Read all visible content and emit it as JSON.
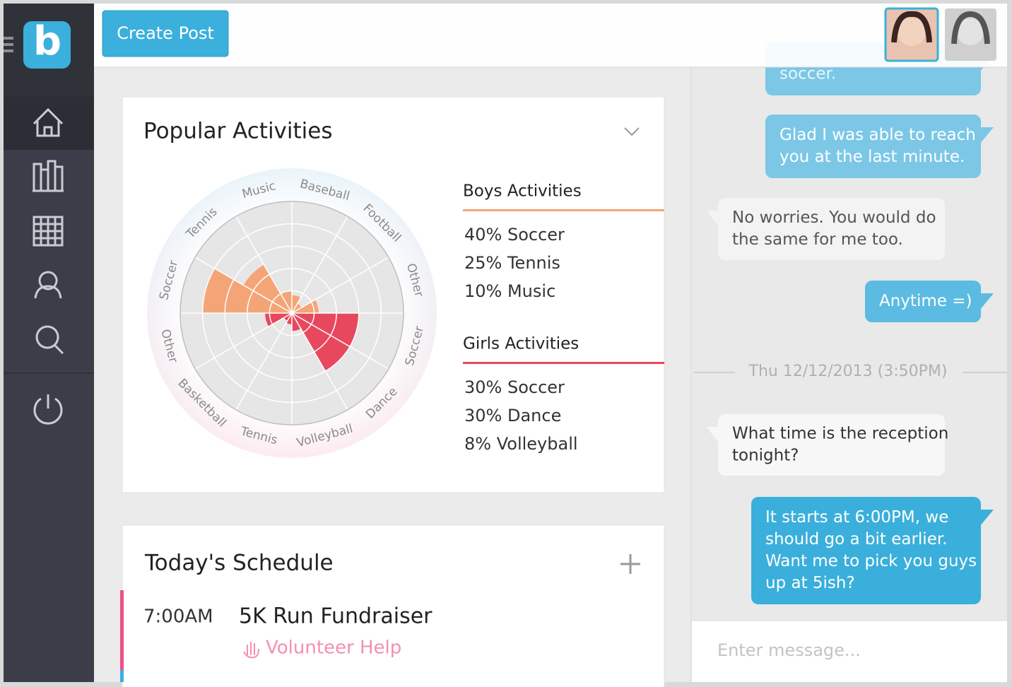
{
  "sidebar": {
    "logo": "b"
  },
  "header": {
    "button": "Create Post"
  },
  "chart_data": {
    "type": "polar",
    "title": "Popular Activities",
    "categories": [
      "Soccer",
      "Tennis",
      "Music",
      "Baseball",
      "Football",
      "Other",
      "Soccer",
      "Dance",
      "Volleyball",
      "Tennis",
      "Basketball",
      "Other"
    ],
    "series": [
      {
        "name": "Boys Activities",
        "color": "#f4a577",
        "values": [
          40,
          25,
          10,
          8,
          5,
          12,
          null,
          null,
          null,
          null,
          null,
          null
        ]
      },
      {
        "name": "Girls Activities",
        "color": "#e8485e",
        "values": [
          null,
          null,
          null,
          null,
          null,
          null,
          30,
          30,
          8,
          5,
          4,
          12
        ]
      }
    ],
    "legend_items": [
      [
        "40% Soccer",
        "25% Tennis",
        "10% Music"
      ],
      [
        "30% Soccer",
        "30% Dance",
        "8% Volleyball"
      ]
    ],
    "rlim": [
      0,
      50
    ],
    "rticks": [
      10,
      20,
      30,
      40,
      50
    ],
    "grid": true
  },
  "schedule": {
    "title": "Today's Schedule",
    "items": [
      {
        "time": "7:00AM",
        "event": "5K Run Fundraiser",
        "tag": "Volunteer Help"
      }
    ]
  },
  "chat": {
    "messages": [
      {
        "lines": [
          "soccer."
        ]
      },
      {
        "lines": [
          "Glad I was able to reach",
          "you at the last minute."
        ]
      },
      {
        "lines": [
          "No worries.  You would do",
          "the same for me too."
        ]
      },
      {
        "lines": [
          "Anytime =)"
        ]
      },
      {
        "lines": [
          "What time is the reception",
          "tonight?"
        ]
      },
      {
        "lines": [
          "It starts at 6:00PM, we",
          "should go a bit earlier.",
          "Want me to pick you guys",
          "up at 5ish?"
        ]
      }
    ],
    "timestamp": "Thu 12/12/2013 (3:50PM)",
    "placeholder": "Enter message..."
  }
}
